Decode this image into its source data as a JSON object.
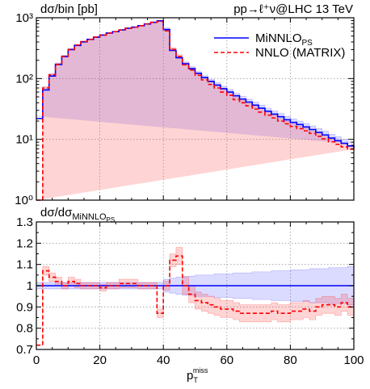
{
  "chart_data": [
    {
      "type": "line",
      "ylabel": "dσ/bin [pb]",
      "annotation": "pp→ℓ⁺ν@LHC 13 TeV",
      "xlim": [
        0,
        100
      ],
      "ylim": [
        1,
        1000
      ],
      "yscale": "log",
      "ytick_labels": [
        "10⁰",
        "10¹",
        "10²",
        "10³"
      ],
      "ytick_values": [
        1,
        10,
        100,
        1000
      ],
      "grid": true,
      "legend_position": "top-right",
      "bin_edges": [
        0,
        2,
        4,
        6,
        8,
        10,
        12,
        14,
        16,
        18,
        20,
        22,
        24,
        26,
        28,
        30,
        32,
        34,
        36,
        38,
        40,
        42,
        44,
        46,
        48,
        50,
        52,
        54,
        56,
        58,
        60,
        62,
        64,
        66,
        68,
        70,
        72,
        74,
        76,
        78,
        80,
        82,
        84,
        86,
        88,
        90,
        92,
        94,
        96,
        98,
        100
      ],
      "series": [
        {
          "name": "MiNNLO",
          "name_sub": "PS",
          "color": "#0000ff",
          "style": "solid",
          "values": [
            22,
            65,
            110,
            170,
            230,
            300,
            350,
            400,
            440,
            480,
            520,
            560,
            590,
            630,
            670,
            700,
            740,
            790,
            840,
            890,
            640,
            290,
            220,
            175,
            145,
            122,
            104,
            90,
            78,
            68,
            60,
            52,
            46,
            41,
            36.5,
            32.5,
            29,
            26,
            23.5,
            21,
            19,
            17.5,
            16,
            14.5,
            13,
            11.8,
            10.5,
            9.5,
            8.6,
            7.8,
            7.2
          ],
          "band_low": [
            20,
            60,
            100,
            160,
            220,
            290,
            340,
            390,
            430,
            470,
            510,
            550,
            580,
            620,
            660,
            690,
            730,
            780,
            830,
            880,
            600,
            270,
            205,
            163,
            134,
            113,
            96,
            83,
            71,
            62,
            54,
            47,
            41,
            36.5,
            32.5,
            28.8,
            25.5,
            22.8,
            20.5,
            18.2,
            16.4,
            15,
            13.6,
            12.3,
            11,
            10,
            8.9,
            8,
            7.3,
            6.5,
            6
          ],
          "band_high": [
            24,
            70,
            120,
            180,
            240,
            310,
            360,
            410,
            450,
            490,
            530,
            570,
            600,
            640,
            680,
            710,
            750,
            800,
            850,
            900,
            680,
            310,
            235,
            187,
            156,
            131,
            112,
            97,
            85,
            74,
            66,
            57,
            51,
            45.5,
            41,
            36.5,
            32.6,
            29.3,
            26.5,
            23.8,
            21.6,
            20,
            18.2,
            16.6,
            15,
            13.6,
            12.1,
            11,
            10,
            9.1,
            8.4
          ]
        },
        {
          "name": "NNLO (MATRIX)",
          "color": "#ff0000",
          "style": "dashed",
          "values": [
            0.5,
            70,
            115,
            170,
            230,
            300,
            355,
            405,
            440,
            480,
            520,
            560,
            590,
            630,
            670,
            700,
            740,
            790,
            840,
            870,
            610,
            300,
            230,
            168,
            138,
            113,
            95,
            80,
            70,
            60,
            53,
            45,
            40,
            35.5,
            31.5,
            28,
            25,
            22.5,
            20,
            18,
            16.3,
            15,
            13.8,
            12.5,
            11.2,
            10.2,
            9.1,
            8.3,
            7.5,
            6.9,
            6.3
          ],
          "band_low": [
            0.5,
            66,
            110,
            164,
            223,
            292,
            346,
            396,
            430,
            470,
            510,
            550,
            578,
            618,
            658,
            688,
            727,
            776,
            825,
            850,
            580,
            280,
            214,
            155,
            127,
            103,
            86,
            72,
            63,
            54,
            47.5,
            40.5,
            36,
            31.9,
            28.4,
            25.2,
            22.5,
            20.2,
            18,
            16.2,
            14.7,
            13.5,
            12.4,
            11.3,
            10.1,
            9.2,
            8.2,
            7.5,
            6.8,
            6.2,
            5.7
          ],
          "band_high": [
            0.5,
            74,
            120,
            176,
            237,
            308,
            364,
            414,
            450,
            490,
            530,
            570,
            602,
            642,
            682,
            712,
            753,
            804,
            855,
            890,
            640,
            320,
            246,
            181,
            149,
            123,
            104,
            88,
            77,
            66,
            58.5,
            49.5,
            44,
            39.1,
            34.7,
            30.8,
            27.5,
            24.8,
            22,
            19.8,
            17.9,
            16.5,
            15.2,
            13.8,
            12.3,
            11.2,
            10,
            9.1,
            8.3,
            7.6,
            6.9
          ]
        }
      ]
    },
    {
      "type": "line",
      "ylabel": "dσ/dσ",
      "ylabel_sub": "MiNNLO",
      "ylabel_subsub": "PS",
      "xlabel": "p",
      "xlabel_sub": "T",
      "xlabel_sup": "miss",
      "xlim": [
        0,
        100
      ],
      "ylim": [
        0.7,
        1.3
      ],
      "xticks": [
        "0",
        "20",
        "40",
        "60",
        "80",
        "100"
      ],
      "xtick_values": [
        0,
        20,
        40,
        60,
        80,
        100
      ],
      "yticks": [
        "0.7",
        "0.8",
        "0.9",
        "1",
        "1.1",
        "1.2",
        "1.3"
      ],
      "ytick_values": [
        0.7,
        0.8,
        0.9,
        1.0,
        1.1,
        1.2,
        1.3
      ],
      "grid": true,
      "bin_edges": [
        0,
        2,
        4,
        6,
        8,
        10,
        12,
        14,
        16,
        18,
        20,
        22,
        24,
        26,
        28,
        30,
        32,
        34,
        36,
        38,
        40,
        42,
        44,
        46,
        48,
        50,
        52,
        54,
        56,
        58,
        60,
        62,
        64,
        66,
        68,
        70,
        72,
        74,
        76,
        78,
        80,
        82,
        84,
        86,
        88,
        90,
        92,
        94,
        96,
        98,
        100
      ],
      "series": [
        {
          "name": "MiNNLO",
          "name_sub": "PS",
          "color": "#0000ff",
          "style": "solid",
          "values": [
            1,
            1,
            1,
            1,
            1,
            1,
            1,
            1,
            1,
            1,
            1,
            1,
            1,
            1,
            1,
            1,
            1,
            1,
            1,
            1,
            1,
            1,
            1,
            1,
            1,
            1,
            1,
            1,
            1,
            1,
            1,
            1,
            1,
            1,
            1,
            1,
            1,
            1,
            1,
            1,
            1,
            1,
            1,
            1,
            1,
            1,
            1,
            1,
            1,
            1
          ],
          "band_low": [
            0.985,
            0.985,
            0.985,
            0.985,
            0.985,
            0.985,
            0.985,
            0.985,
            0.985,
            0.985,
            0.985,
            0.985,
            0.985,
            0.985,
            0.985,
            0.985,
            0.985,
            0.985,
            0.985,
            0.985,
            0.97,
            0.965,
            0.96,
            0.955,
            0.955,
            0.95,
            0.95,
            0.95,
            0.945,
            0.945,
            0.945,
            0.94,
            0.94,
            0.94,
            0.935,
            0.935,
            0.935,
            0.93,
            0.93,
            0.93,
            0.925,
            0.925,
            0.925,
            0.92,
            0.92,
            0.92,
            0.915,
            0.915,
            0.915,
            0.91
          ],
          "band_high": [
            1.015,
            1.015,
            1.015,
            1.015,
            1.015,
            1.015,
            1.015,
            1.015,
            1.015,
            1.015,
            1.015,
            1.015,
            1.015,
            1.015,
            1.015,
            1.015,
            1.015,
            1.015,
            1.015,
            1.015,
            1.03,
            1.035,
            1.04,
            1.045,
            1.045,
            1.05,
            1.05,
            1.05,
            1.055,
            1.055,
            1.055,
            1.06,
            1.06,
            1.06,
            1.065,
            1.065,
            1.065,
            1.07,
            1.07,
            1.07,
            1.075,
            1.075,
            1.075,
            1.08,
            1.08,
            1.08,
            1.085,
            1.085,
            1.085,
            1.09
          ]
        },
        {
          "name": "NNLO (MATRIX)",
          "color": "#ff0000",
          "style": "dashed",
          "values": [
            0.72,
            1.07,
            1.04,
            1.02,
            1.0,
            1.02,
            1.01,
            1.0,
            1.0,
            1.0,
            0.99,
            1.0,
            1.0,
            1.01,
            1.01,
            1.01,
            1.0,
            1.0,
            1.0,
            0.87,
            1.0,
            1.12,
            1.14,
            1.0,
            0.96,
            0.93,
            0.92,
            0.91,
            0.9,
            0.89,
            0.89,
            0.88,
            0.87,
            0.87,
            0.87,
            0.87,
            0.87,
            0.88,
            0.87,
            0.87,
            0.88,
            0.88,
            0.89,
            0.88,
            0.9,
            0.91,
            0.91,
            0.9,
            0.92,
            0.9
          ],
          "band_low": [
            0.72,
            1.05,
            1.02,
            1.0,
            0.985,
            1.0,
            0.99,
            0.985,
            0.985,
            0.985,
            0.975,
            0.985,
            0.985,
            0.99,
            0.99,
            0.99,
            0.985,
            0.985,
            0.985,
            0.85,
            0.98,
            1.09,
            1.1,
            0.96,
            0.92,
            0.89,
            0.88,
            0.87,
            0.86,
            0.85,
            0.85,
            0.84,
            0.83,
            0.83,
            0.83,
            0.83,
            0.83,
            0.84,
            0.83,
            0.83,
            0.84,
            0.84,
            0.85,
            0.84,
            0.86,
            0.87,
            0.87,
            0.86,
            0.88,
            0.86
          ],
          "band_high": [
            0.72,
            1.09,
            1.06,
            1.04,
            1.015,
            1.04,
            1.03,
            1.015,
            1.015,
            1.015,
            1.005,
            1.015,
            1.015,
            1.03,
            1.03,
            1.03,
            1.015,
            1.015,
            1.015,
            0.89,
            1.02,
            1.15,
            1.18,
            1.04,
            1.0,
            0.97,
            0.96,
            0.95,
            0.94,
            0.93,
            0.93,
            0.92,
            0.91,
            0.91,
            0.91,
            0.91,
            0.91,
            0.92,
            0.91,
            0.91,
            0.92,
            0.92,
            0.93,
            0.92,
            0.94,
            0.95,
            0.95,
            0.94,
            0.96,
            0.94
          ]
        }
      ]
    }
  ]
}
